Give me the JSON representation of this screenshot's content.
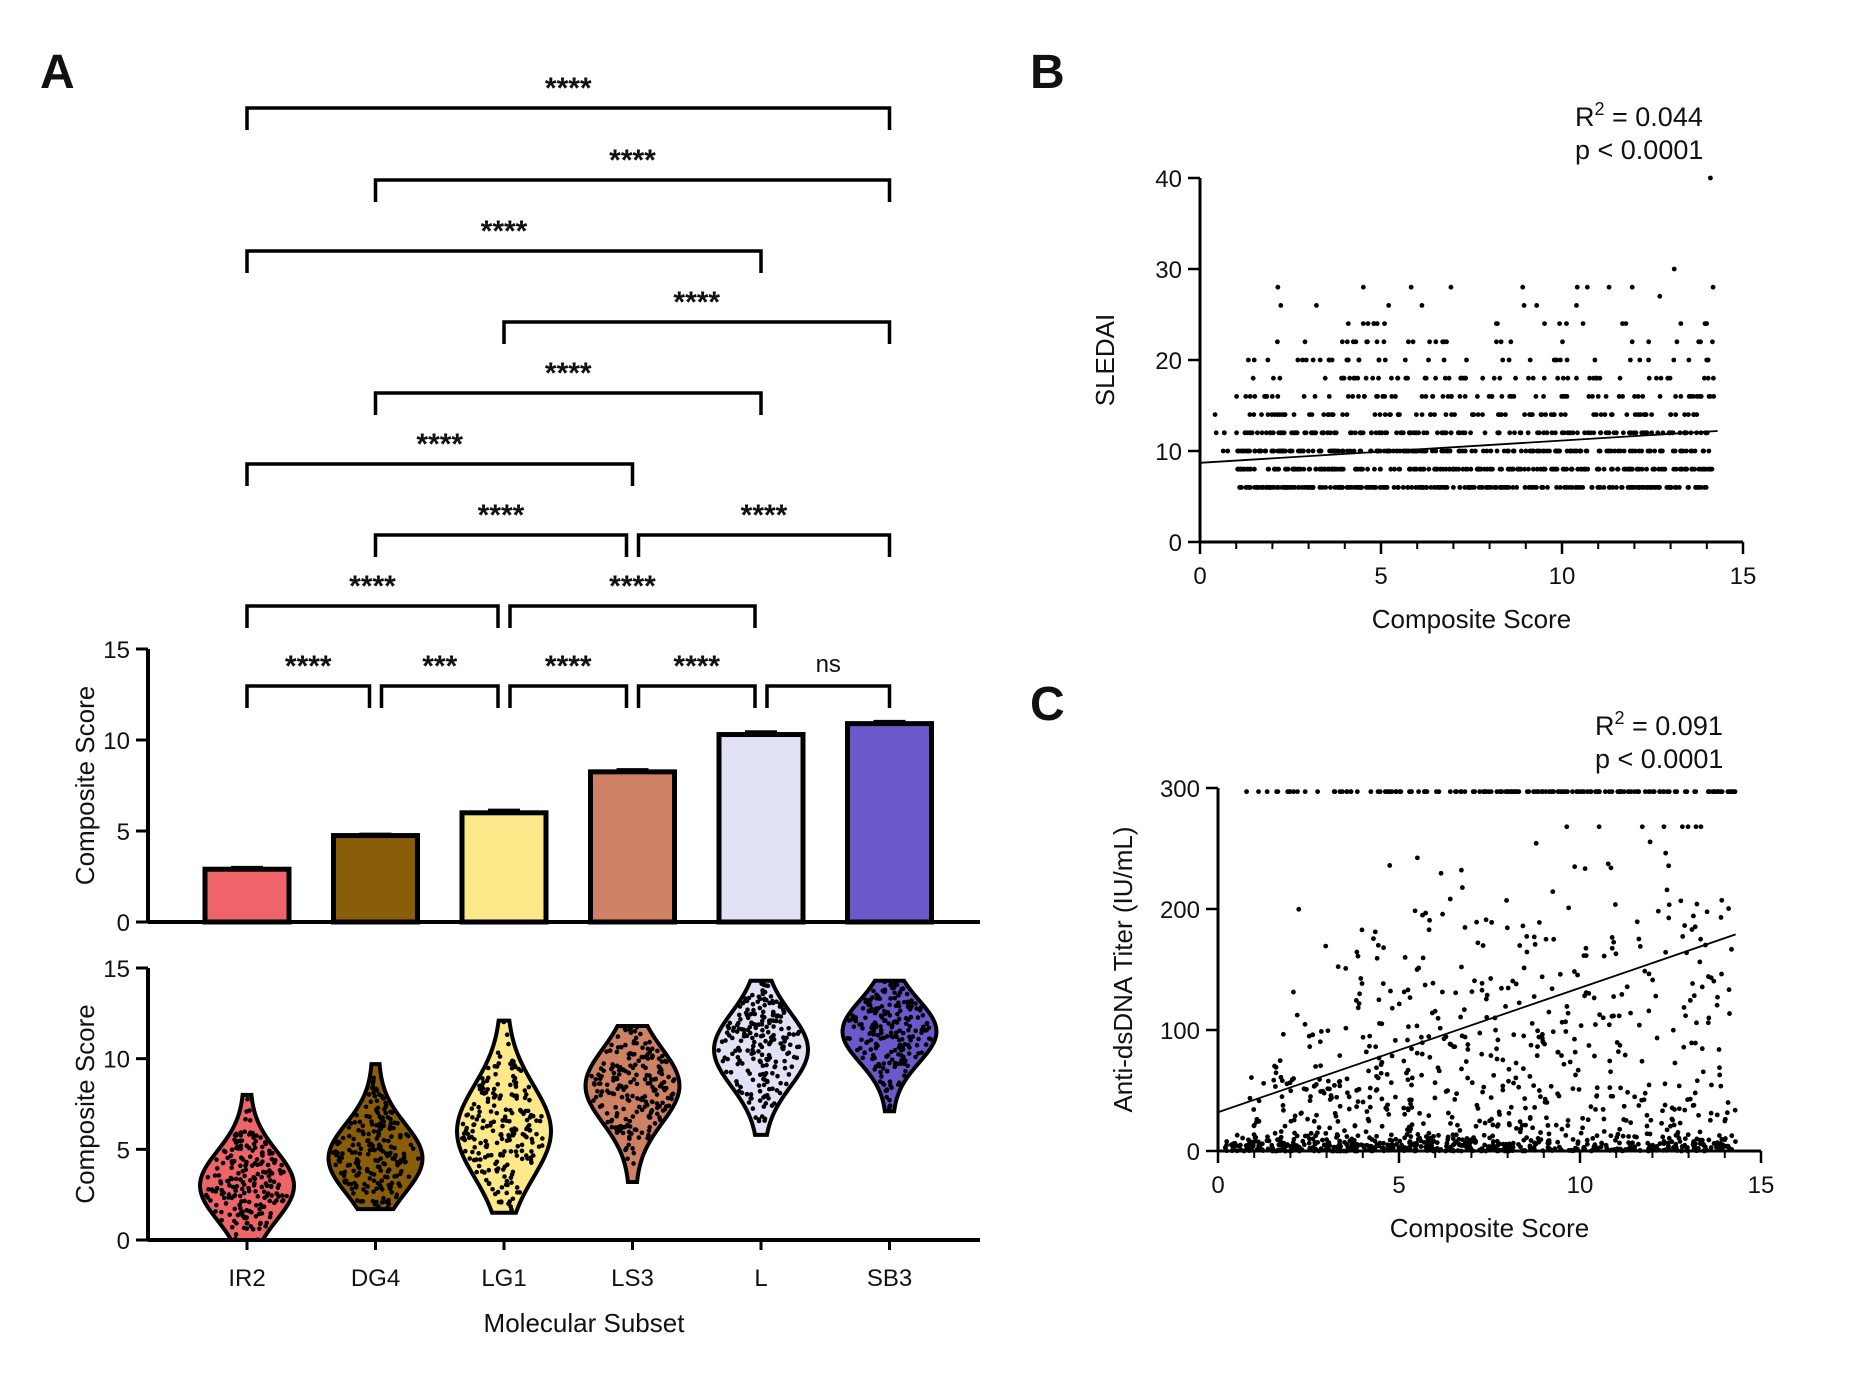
{
  "panels": {
    "a": "A",
    "b": "B",
    "c": "C"
  },
  "colors": {
    "IR2": "#EE6468",
    "DG4": "#8A5E08",
    "LG1": "#FDE98A",
    "LS3": "#CE8163",
    "L": "#E1E2F6",
    "SB3": "#6B58CB",
    "axis": "#000000"
  },
  "chart_data": [
    {
      "id": "A-bar",
      "type": "bar",
      "categories": [
        "IR2",
        "DG4",
        "LG1",
        "LS3",
        "L",
        "SB3"
      ],
      "values": [
        2.9,
        4.75,
        6.0,
        8.25,
        10.3,
        10.9
      ],
      "error": [
        0.1,
        0.08,
        0.15,
        0.12,
        0.15,
        0.12
      ],
      "ylabel": "Composite Score",
      "ylim": [
        0,
        15
      ],
      "yticks": [
        0,
        5,
        10,
        15
      ],
      "significance": [
        {
          "from": "IR2",
          "to": "DG4",
          "label": "****"
        },
        {
          "from": "DG4",
          "to": "LG1",
          "label": "***"
        },
        {
          "from": "LG1",
          "to": "LS3",
          "label": "****"
        },
        {
          "from": "LS3",
          "to": "L",
          "label": "****"
        },
        {
          "from": "L",
          "to": "SB3",
          "label": "ns"
        },
        {
          "from": "IR2",
          "to": "LG1",
          "label": "****"
        },
        {
          "from": "LG1",
          "to": "L",
          "label": "****"
        },
        {
          "from": "DG4",
          "to": "LS3",
          "label": "****"
        },
        {
          "from": "LS3",
          "to": "SB3",
          "label": "****"
        },
        {
          "from": "IR2",
          "to": "LS3",
          "label": "****"
        },
        {
          "from": "DG4",
          "to": "L",
          "label": "****"
        },
        {
          "from": "LG1",
          "to": "SB3",
          "label": "****"
        },
        {
          "from": "IR2",
          "to": "L",
          "label": "****"
        },
        {
          "from": "DG4",
          "to": "SB3",
          "label": "****"
        },
        {
          "from": "IR2",
          "to": "SB3",
          "label": "****"
        }
      ]
    },
    {
      "id": "A-violin",
      "type": "scatter",
      "categories": [
        "IR2",
        "DG4",
        "LG1",
        "LS3",
        "L",
        "SB3"
      ],
      "ranges": [
        [
          0,
          8
        ],
        [
          1.7,
          9.7
        ],
        [
          1.5,
          12.1
        ],
        [
          3.2,
          11.8
        ],
        [
          5.8,
          14.3
        ],
        [
          7.1,
          14.3
        ]
      ],
      "centers": [
        3.0,
        4.5,
        6.0,
        8.5,
        10.5,
        11.5
      ],
      "xlabel": "Molecular Subset",
      "ylabel": "Composite Score",
      "ylim": [
        0,
        15
      ],
      "yticks": [
        0,
        5,
        10,
        15
      ]
    },
    {
      "id": "B",
      "type": "scatter",
      "xlabel": "Composite Score",
      "ylabel": "SLEDAI",
      "xlim": [
        0,
        15
      ],
      "ylim": [
        0,
        40
      ],
      "xticks": [
        0,
        5,
        10,
        15
      ],
      "yticks": [
        0,
        10,
        20,
        30,
        40
      ],
      "fit": {
        "x": [
          0,
          14.3
        ],
        "y": [
          8.7,
          12.2
        ]
      },
      "r2_label": "R",
      "r2_value": " = 0.044",
      "p_label": "p < 0.0001"
    },
    {
      "id": "C",
      "type": "scatter",
      "xlabel": "Composite Score",
      "ylabel": "Anti-dsDNA Titer (IU/mL)",
      "xlim": [
        0,
        15
      ],
      "ylim": [
        0,
        300
      ],
      "xticks": [
        0,
        5,
        10,
        15
      ],
      "yticks": [
        0,
        100,
        200,
        300
      ],
      "fit": {
        "x": [
          0,
          14.3
        ],
        "y": [
          32,
          179
        ]
      },
      "r2_label": "R",
      "r2_value": " = 0.091",
      "p_label": "p < 0.0001"
    }
  ]
}
